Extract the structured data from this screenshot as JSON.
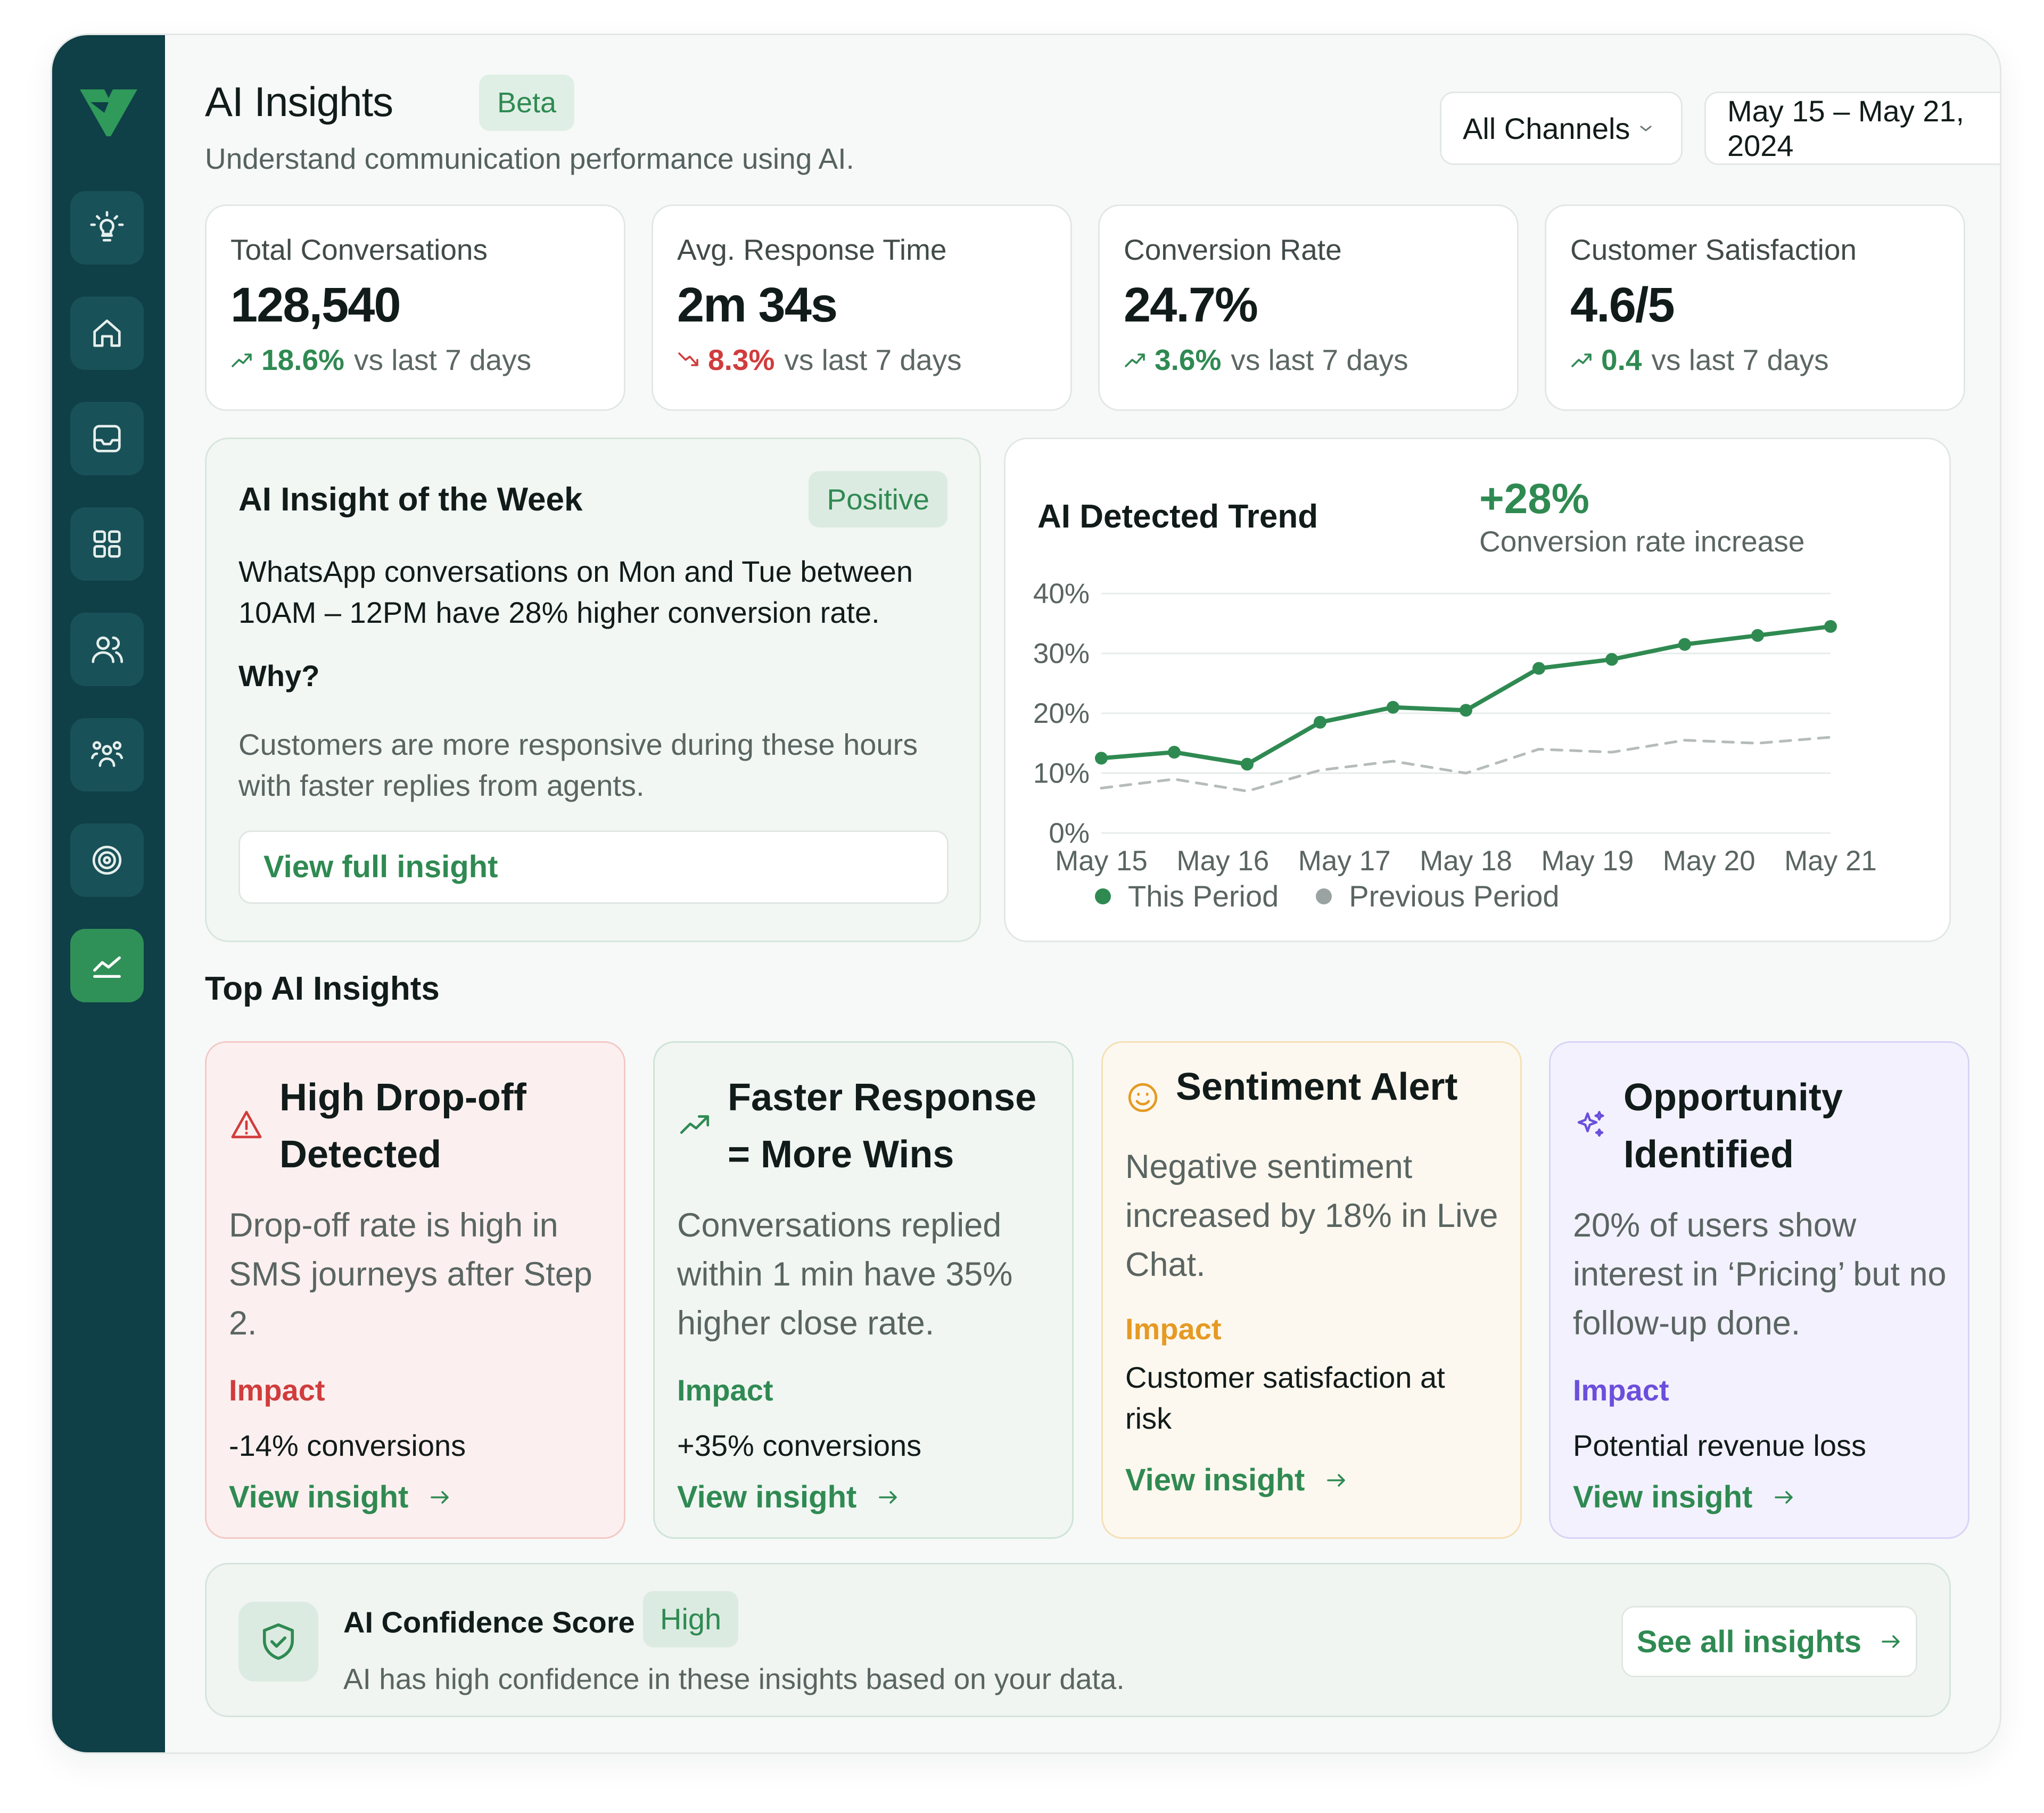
{
  "header": {
    "title": "AI Insights",
    "badge": "Beta",
    "subtitle": "Understand communication performance using AI.",
    "channel_filter": "All Channels",
    "date_range": "May 15 – May 21, 2024"
  },
  "sidebar": {
    "items": [
      {
        "icon": "lightbulb-icon"
      },
      {
        "icon": "home-icon"
      },
      {
        "icon": "inbox-icon"
      },
      {
        "icon": "grid-icon"
      },
      {
        "icon": "users-icon"
      },
      {
        "icon": "team-icon"
      },
      {
        "icon": "target-icon"
      },
      {
        "icon": "analytics-icon",
        "active": true
      }
    ]
  },
  "stats": [
    {
      "label": "Total Conversations",
      "value": "128,540",
      "delta": "18.6%",
      "direction": "up",
      "compare": "vs last 7 days"
    },
    {
      "label": "Avg. Response Time",
      "value": "2m 34s",
      "delta": "8.3%",
      "direction": "down",
      "compare": "vs last 7 days"
    },
    {
      "label": "Conversion Rate",
      "value": "24.7%",
      "delta": "3.6%",
      "direction": "up",
      "compare": "vs last 7 days"
    },
    {
      "label": "Customer Satisfaction",
      "value": "4.6/5",
      "delta": "0.4",
      "direction": "up",
      "compare": "vs last 7 days"
    }
  ],
  "insight_of_week": {
    "title": "AI Insight of the Week",
    "badge": "Positive",
    "text": "WhatsApp conversations on Mon and Tue between 10AM – 12PM have 28% higher conversion rate.",
    "why_label": "Why?",
    "reason": "Customers are more responsive during these hours with faster replies from agents.",
    "button": "View full insight"
  },
  "trend": {
    "title": "AI Detected Trend",
    "highlight": "+28%",
    "highlight_sub": "Conversion rate increase"
  },
  "chart_data": {
    "type": "line",
    "x": [
      "May 15",
      "May 16",
      "May 17",
      "May 18",
      "May 19",
      "May 20",
      "May 21"
    ],
    "y_ticks": [
      "40%",
      "30%",
      "20%",
      "10%",
      "0%"
    ],
    "ylim": [
      0,
      40
    ],
    "series": [
      {
        "name": "This Period",
        "color": "#2f8a52",
        "points": [
          [
            0,
            12.5
          ],
          [
            0.6,
            13.5
          ],
          [
            1.2,
            11.5
          ],
          [
            1.8,
            18.5
          ],
          [
            2.4,
            21
          ],
          [
            3,
            20.5
          ],
          [
            3.6,
            27.5
          ],
          [
            4.2,
            29
          ],
          [
            4.8,
            31.5
          ],
          [
            5.4,
            33
          ],
          [
            6,
            34.5
          ]
        ]
      },
      {
        "name": "Previous Period",
        "color": "#b5bcba",
        "points": [
          [
            0,
            7.5
          ],
          [
            0.6,
            9
          ],
          [
            1.2,
            7
          ],
          [
            1.8,
            10.5
          ],
          [
            2.4,
            12
          ],
          [
            3,
            10
          ],
          [
            3.6,
            14
          ],
          [
            4.2,
            13.5
          ],
          [
            4.8,
            15.5
          ],
          [
            5.4,
            15
          ],
          [
            6,
            16
          ]
        ]
      }
    ],
    "legend": "bottom",
    "grid": true
  },
  "top_insights": {
    "title": "Top AI Insights",
    "cards": [
      {
        "title": "High Drop-off Detected",
        "body": "Drop-off rate is high in SMS journeys after Step 2.",
        "impact_label": "Impact",
        "impact": "-14% conversions",
        "link": "View insight",
        "icon": "alert-triangle-icon",
        "accent": "#d13c3c"
      },
      {
        "title": "Faster Response = More Wins",
        "body": "Conversations replied within 1 min have 35% higher close rate.",
        "impact_label": "Impact",
        "impact": "+35% conversions",
        "link": "View insight",
        "icon": "trend-up-icon",
        "accent": "#2f8a52"
      },
      {
        "title": "Sentiment Alert",
        "body": "Negative sentiment increased by 18% in Live Chat.",
        "impact_label": "Impact",
        "impact": "Customer satisfaction at risk",
        "link": "View insight",
        "icon": "smile-icon",
        "accent": "#e59a23"
      },
      {
        "title": "Opportunity Identified",
        "body": "20% of users show interest in ‘Pricing’ but no follow-up done.",
        "impact_label": "Impact",
        "impact": "Potential revenue loss",
        "link": "View insight",
        "icon": "sparkles-icon",
        "accent": "#6b4fdc"
      }
    ]
  },
  "confidence": {
    "title": "AI Confidence Score",
    "badge": "High",
    "subtitle": "AI has high confidence in these insights based on your data.",
    "button": "See all insights"
  }
}
